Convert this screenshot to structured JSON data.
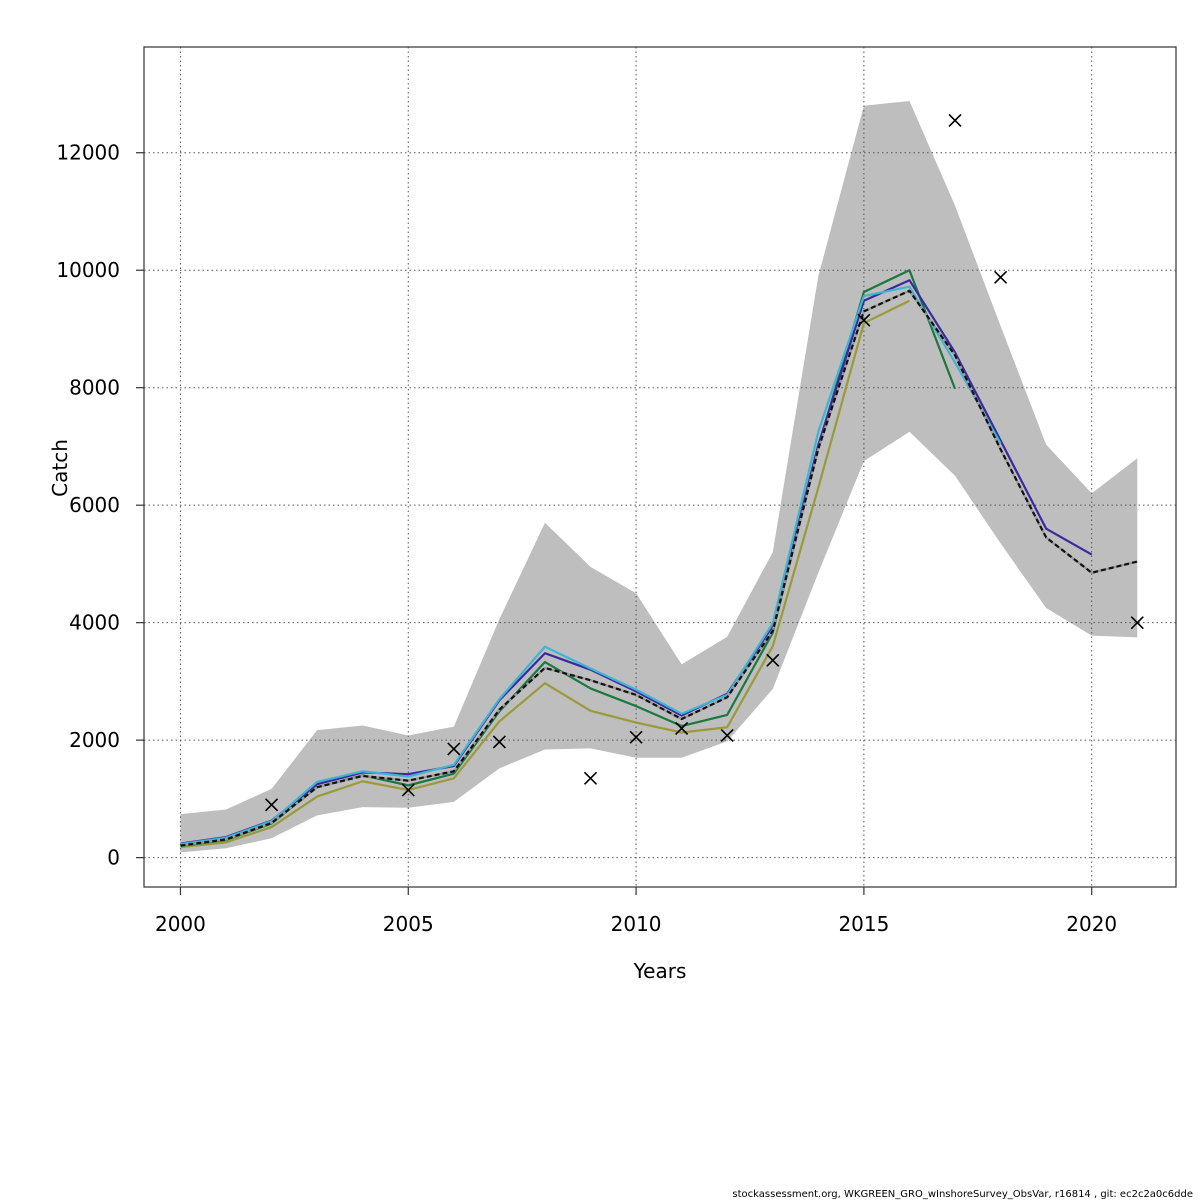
{
  "chart_data": {
    "type": "line",
    "xlabel": "Years",
    "ylabel": "Catch",
    "xlim": [
      1999.2,
      2021.85
    ],
    "ylim": [
      -500,
      13800
    ],
    "xticks": [
      2000,
      2005,
      2010,
      2015,
      2020
    ],
    "yticks": [
      0,
      2000,
      4000,
      6000,
      8000,
      10000,
      12000
    ],
    "xtick_labels": [
      "2000",
      "2005",
      "2010",
      "2015",
      "2020"
    ],
    "ytick_labels": [
      "0",
      "2000",
      "4000",
      "6000",
      "8000",
      "10000",
      "12000"
    ],
    "grid": true,
    "confidence_band": {
      "color": "#bebebe",
      "x": [
        2000,
        2001,
        2002,
        2003,
        2004,
        2005,
        2006,
        2007,
        2008,
        2009,
        2010,
        2011,
        2012,
        2013,
        2014,
        2015,
        2016,
        2017,
        2018,
        2019,
        2020,
        2021
      ],
      "lower": [
        90,
        160,
        330,
        720,
        860,
        850,
        950,
        1520,
        1840,
        1860,
        1700,
        1700,
        1980,
        2870,
        4850,
        6750,
        7250,
        6500,
        5350,
        4250,
        3780,
        3750
      ],
      "upper": [
        740,
        820,
        1170,
        2170,
        2250,
        2080,
        2230,
        4060,
        5700,
        4950,
        4500,
        3290,
        3760,
        5200,
        9900,
        12800,
        12880,
        11100,
        9050,
        7030,
        6200,
        6800
      ]
    },
    "series": [
      {
        "color": "#9a9a3a",
        "x": [
          2000,
          2001,
          2002,
          2003,
          2004,
          2005,
          2006,
          2007,
          2008,
          2009,
          2010,
          2011,
          2012,
          2013,
          2014,
          2015,
          2016
        ],
        "values": [
          180,
          260,
          520,
          1040,
          1300,
          1150,
          1350,
          2320,
          2970,
          2500,
          2300,
          2130,
          2220,
          3600,
          6300,
          9100,
          9480
        ]
      },
      {
        "color": "#1a7840",
        "x": [
          2000,
          2001,
          2002,
          2003,
          2004,
          2005,
          2006,
          2007,
          2008,
          2009,
          2010,
          2011,
          2012,
          2013,
          2014,
          2015,
          2016,
          2017
        ],
        "values": [
          200,
          300,
          580,
          1200,
          1400,
          1230,
          1430,
          2490,
          3330,
          2880,
          2580,
          2240,
          2430,
          3830,
          7000,
          9630,
          10000,
          7980
        ]
      },
      {
        "color": "#3a2aa0",
        "x": [
          2000,
          2001,
          2002,
          2003,
          2004,
          2005,
          2006,
          2007,
          2008,
          2009,
          2010,
          2011,
          2012,
          2013,
          2014,
          2015,
          2016,
          2017,
          2018,
          2019,
          2020
        ],
        "values": [
          240,
          350,
          630,
          1250,
          1450,
          1420,
          1560,
          2680,
          3480,
          3200,
          2830,
          2420,
          2790,
          3940,
          7030,
          9480,
          9830,
          8600,
          7100,
          5600,
          5160
        ]
      },
      {
        "color": "#40b4d4",
        "x": [
          2000,
          2001,
          2002,
          2003,
          2004,
          2005,
          2006,
          2007,
          2008,
          2009,
          2010,
          2011,
          2012,
          2013,
          2014,
          2015,
          2016,
          2017,
          2018
        ],
        "values": [
          230,
          340,
          620,
          1290,
          1470,
          1380,
          1580,
          2700,
          3590,
          3220,
          2860,
          2450,
          2770,
          3990,
          7250,
          9560,
          9720,
          8430,
          7050
        ]
      },
      {
        "color": "#111111",
        "dashed": true,
        "x": [
          2000,
          2001,
          2002,
          2003,
          2004,
          2005,
          2006,
          2007,
          2008,
          2009,
          2010,
          2011,
          2012,
          2013,
          2014,
          2015,
          2016,
          2017,
          2018,
          2019,
          2020,
          2021
        ],
        "values": [
          205,
          310,
          590,
          1200,
          1390,
          1310,
          1470,
          2520,
          3230,
          3020,
          2770,
          2360,
          2730,
          3860,
          6960,
          9300,
          9650,
          8550,
          6950,
          5450,
          4850,
          5040
        ]
      }
    ],
    "observations": {
      "marker": "x",
      "color": "#000000",
      "x": [
        2002,
        2005,
        2006,
        2007,
        2009,
        2010,
        2011,
        2012,
        2013,
        2015,
        2017,
        2018,
        2021
      ],
      "values": [
        900,
        1150,
        1850,
        1970,
        1350,
        2050,
        2200,
        2080,
        3360,
        9150,
        12550,
        9880,
        4000
      ]
    }
  },
  "footer": "stockassessment.org, WKGREEN_GRO_wInshoreSurvey_ObsVar, r16814 , git: ec2c2a0c6dde"
}
